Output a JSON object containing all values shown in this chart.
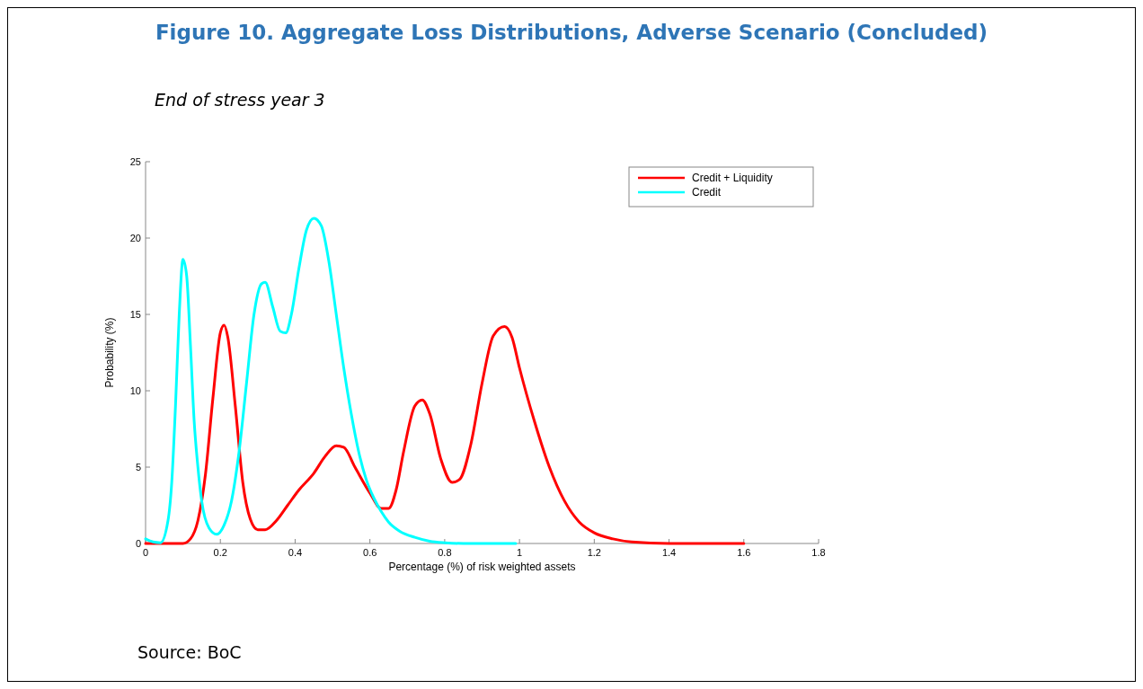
{
  "chart_data": {
    "type": "line",
    "title": "Figure 10. Aggregate Loss Distributions, Adverse Scenario (Concluded)",
    "subtitle": "End of stress year 3",
    "xlabel": "Percentage (%) of risk weighted assets",
    "ylabel": "Probability (%)",
    "annotations": [
      "Source: BoC"
    ],
    "xlim": [
      0,
      1.8
    ],
    "xticks": [
      0,
      0.2,
      0.4,
      0.6,
      0.8,
      1,
      1.2,
      1.4,
      1.6,
      1.8
    ],
    "ylim": [
      0,
      25
    ],
    "yticks": [
      0,
      5,
      10,
      15,
      20,
      25
    ],
    "grid": false,
    "legend": "top right",
    "marker": "none",
    "line_style": "solid",
    "series": [
      {
        "name": "Credit + Liquidity",
        "color": "#ff0000",
        "x": [
          0,
          0.1,
          0.12,
          0.14,
          0.16,
          0.18,
          0.2,
          0.21,
          0.22,
          0.24,
          0.26,
          0.28,
          0.3,
          0.32,
          0.35,
          0.38,
          0.41,
          0.45,
          0.48,
          0.51,
          0.53,
          0.56,
          0.6,
          0.63,
          0.65,
          0.67,
          0.69,
          0.72,
          0.74,
          0.76,
          0.79,
          0.82,
          0.84,
          0.87,
          0.9,
          0.93,
          0.96,
          0.98,
          1.0,
          1.04,
          1.08,
          1.12,
          1.16,
          1.2,
          1.25,
          1.3,
          1.4,
          1.5,
          1.6
        ],
        "values": [
          0,
          0,
          0.3,
          1.5,
          4.5,
          9.5,
          13.8,
          14.3,
          13.5,
          9,
          4,
          1.6,
          0.9,
          0.9,
          1.5,
          2.5,
          3.5,
          4.6,
          5.7,
          6.4,
          6.3,
          5,
          3.3,
          2.3,
          2.3,
          3.5,
          6,
          9,
          9.4,
          8.5,
          5.5,
          4,
          4.2,
          6.5,
          10.5,
          13.6,
          14.2,
          13.5,
          11.5,
          8,
          5,
          2.8,
          1.4,
          0.7,
          0.3,
          0.1,
          0,
          0,
          0
        ]
      },
      {
        "name": "Credit",
        "color": "#00ffff",
        "x": [
          0,
          0.02,
          0.04,
          0.06,
          0.07,
          0.08,
          0.09,
          0.1,
          0.11,
          0.12,
          0.13,
          0.14,
          0.15,
          0.17,
          0.19,
          0.21,
          0.23,
          0.25,
          0.27,
          0.29,
          0.31,
          0.32,
          0.34,
          0.36,
          0.375,
          0.39,
          0.41,
          0.43,
          0.45,
          0.47,
          0.49,
          0.51,
          0.53,
          0.55,
          0.57,
          0.59,
          0.61,
          0.63,
          0.65,
          0.68,
          0.72,
          0.76,
          0.8,
          0.85,
          0.9,
          0.99
        ],
        "values": [
          0.3,
          0.1,
          0.05,
          1.5,
          4,
          9,
          15,
          18.6,
          17.5,
          13,
          8,
          5,
          2.8,
          1,
          0.6,
          1.2,
          2.8,
          6,
          10.5,
          15,
          17,
          17.1,
          15.5,
          13.9,
          13.8,
          15,
          18,
          20.5,
          21.3,
          20.8,
          18.5,
          15,
          11.5,
          8.5,
          6,
          4.2,
          3,
          2.1,
          1.4,
          0.8,
          0.4,
          0.15,
          0.05,
          0,
          0,
          0
        ]
      }
    ]
  }
}
